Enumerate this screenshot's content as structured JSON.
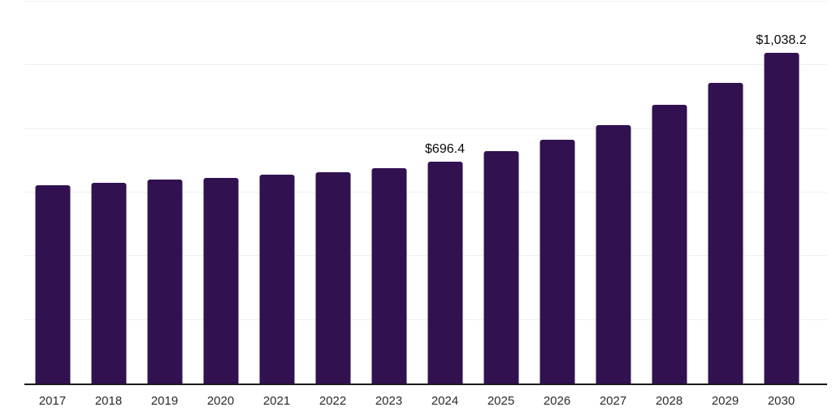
{
  "chart_data": {
    "type": "bar",
    "title": "",
    "xlabel": "",
    "ylabel": "",
    "categories": [
      "2017",
      "2018",
      "2019",
      "2020",
      "2021",
      "2022",
      "2023",
      "2024",
      "2025",
      "2026",
      "2027",
      "2028",
      "2029",
      "2030"
    ],
    "values": [
      624,
      631,
      640,
      647,
      655,
      663,
      677,
      696.4,
      730,
      767,
      811,
      876,
      945,
      1038.2
    ],
    "data_labels": [
      {
        "index": 7,
        "text": "$696.4"
      },
      {
        "index": 13,
        "text": "$1,038.2"
      }
    ],
    "ylim": [
      0,
      1200
    ],
    "gridline_step": 200,
    "grid": "horizontal",
    "legend_position": "none",
    "value_prefix": "$"
  },
  "style": {
    "bar_color": "#321150",
    "axis_line_color": "#1a1a1a",
    "gridline_color": "#f0f0f0",
    "tick_label_color": "#2b2b2b",
    "data_label_color": "#0a0a0a",
    "background_color": "#ffffff"
  }
}
